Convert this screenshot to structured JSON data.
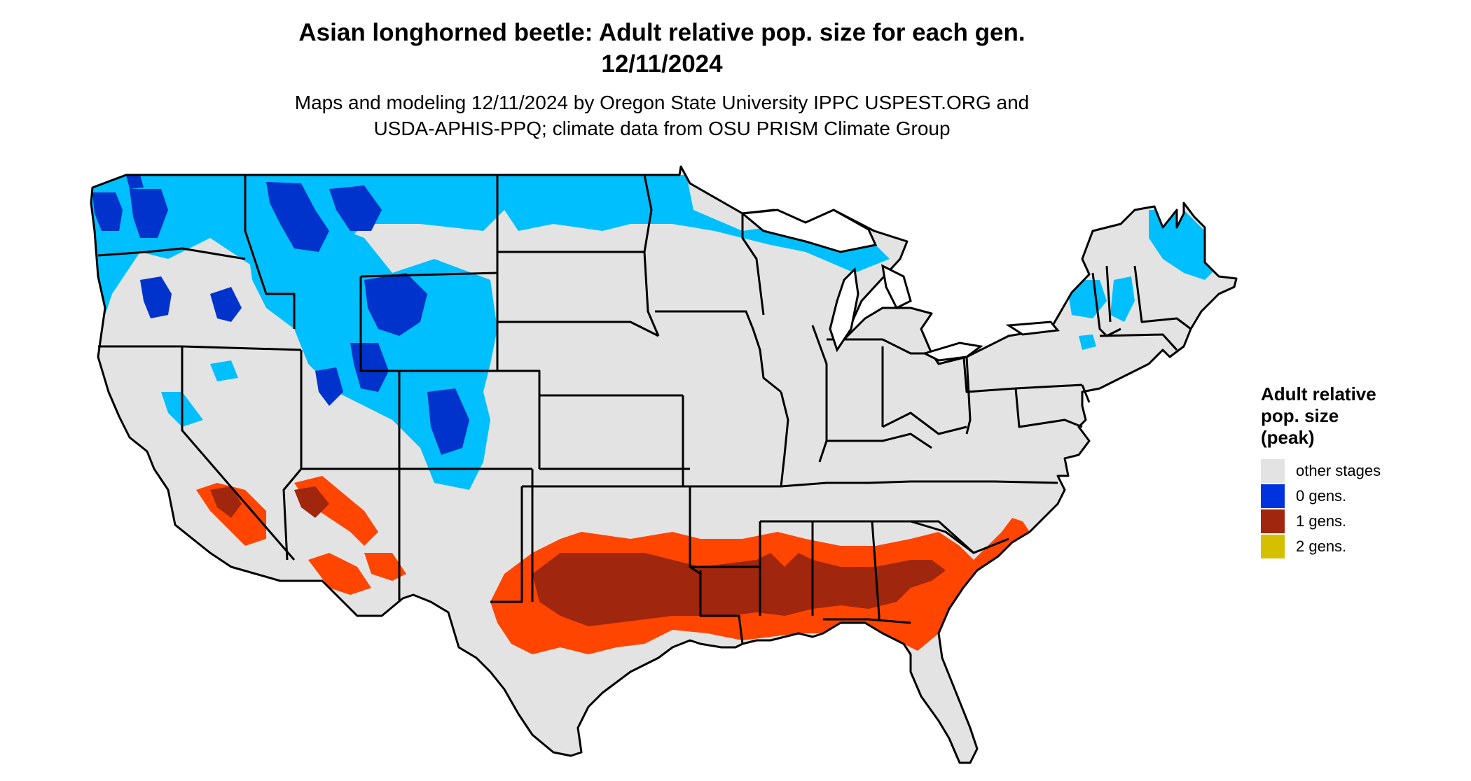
{
  "title": {
    "line1": "Asian longhorned beetle: Adult relative pop. size for each gen.",
    "line2": "12/11/2024"
  },
  "subtitle": {
    "line1": "Maps and modeling 12/11/2024 by Oregon State University IPPC USPEST.ORG and",
    "line2": "USDA-APHIS-PPQ; climate data from OSU PRISM Climate Group"
  },
  "map": {
    "colors": {
      "land": "#e3e3e3",
      "border": "#000000",
      "zero_gens_light": "#00bfff",
      "zero_gens_dark": "#0033cc",
      "one_gen_light": "#ff4500",
      "one_gen_dark": "#a0260e",
      "water": "#ffffff"
    }
  },
  "legend": {
    "title_line1": "Adult relative",
    "title_line2": "pop. size",
    "title_line3": "(peak)",
    "items": [
      {
        "label": "other stages",
        "color": "#e3e3e3"
      },
      {
        "label": "0 gens.",
        "color": "#0033dd"
      },
      {
        "label": "1 gens.",
        "color": "#a0260e"
      },
      {
        "label": "2 gens.",
        "color": "#d4c000"
      }
    ]
  }
}
